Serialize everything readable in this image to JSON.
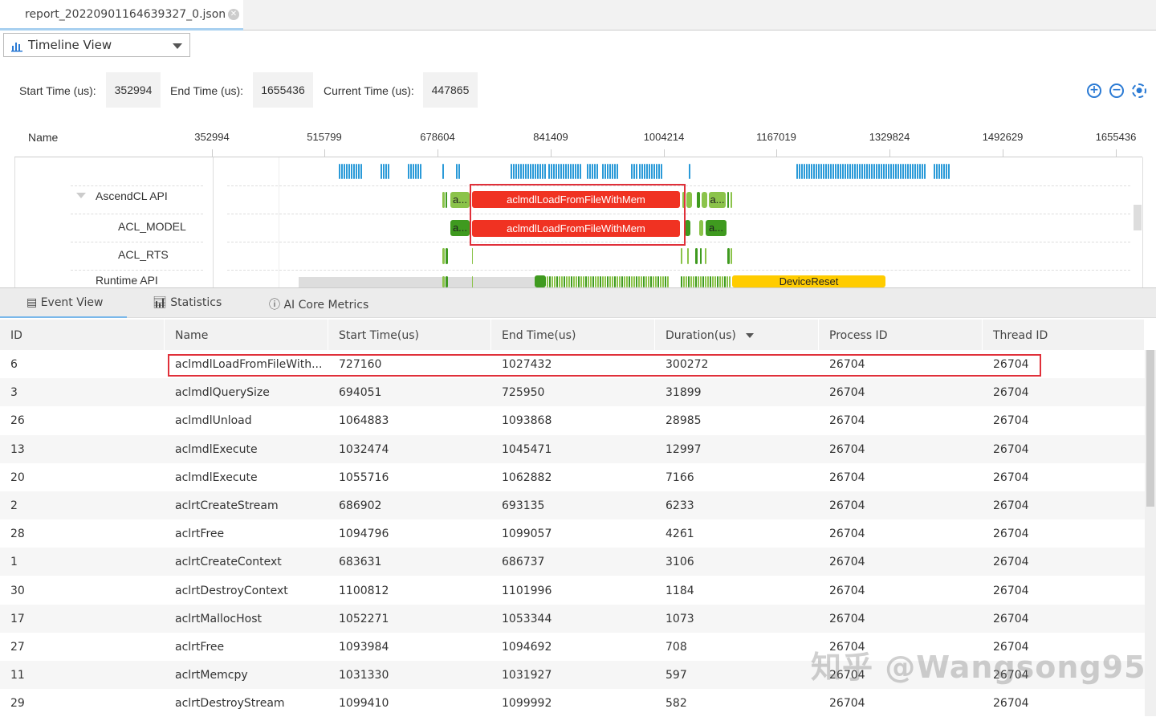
{
  "file_tab": {
    "title": "report_20220901164639327_0.json",
    "close_icon": "close-circle-icon"
  },
  "view_selector": {
    "value": "Timeline View",
    "icon": "bar-chart-icon"
  },
  "time_controls": {
    "start_label": "Start Time (us):",
    "start_value": "352994",
    "end_label": "End Time (us):",
    "end_value": "1655436",
    "current_label": "Current Time (us):",
    "current_value": "447865"
  },
  "zoom_controls": [
    "zoom-in-icon",
    "zoom-out-icon",
    "reset-zoom-icon"
  ],
  "timeline": {
    "name_header": "Name",
    "ticks": [
      "352994",
      "515799",
      "678604",
      "841409",
      "1004214",
      "1167019",
      "1329824",
      "1492629",
      "1655436"
    ],
    "tracks": [
      {
        "label": "AscendCL API"
      },
      {
        "label": "ACL_MODEL"
      },
      {
        "label": "ACL_RTS"
      },
      {
        "label": "Runtime API"
      }
    ],
    "event_labels": {
      "short": "a...",
      "highlight": "aclmdlLoadFromFileWithMem",
      "device_reset": "DeviceReset"
    },
    "colors": {
      "blue": "#2a9ad8",
      "light_green": "#8bc34a",
      "dark_green": "#3f9a1f",
      "red": "#f03222",
      "yellow": "#ffcc00",
      "highlight_border": "#e0303a"
    }
  },
  "bottom_tabs": [
    {
      "label": "Event View",
      "icon": "document-icon",
      "active": true
    },
    {
      "label": "Statistics",
      "icon": "bar-chart-icon"
    },
    {
      "label": "AI Core Metrics",
      "icon": "info-circle-icon"
    }
  ],
  "table": {
    "columns": [
      "ID",
      "Name",
      "Start Time(us)",
      "End Time(us)",
      "Duration(us)",
      "Process ID",
      "Thread ID"
    ],
    "sorted_column": "Duration(us)",
    "rows": [
      [
        "6",
        "aclmdlLoadFromFileWith...",
        "727160",
        "1027432",
        "300272",
        "26704",
        "26704"
      ],
      [
        "3",
        "aclmdlQuerySize",
        "694051",
        "725950",
        "31899",
        "26704",
        "26704"
      ],
      [
        "26",
        "aclmdlUnload",
        "1064883",
        "1093868",
        "28985",
        "26704",
        "26704"
      ],
      [
        "13",
        "aclmdlExecute",
        "1032474",
        "1045471",
        "12997",
        "26704",
        "26704"
      ],
      [
        "20",
        "aclmdlExecute",
        "1055716",
        "1062882",
        "7166",
        "26704",
        "26704"
      ],
      [
        "2",
        "aclrtCreateStream",
        "686902",
        "693135",
        "6233",
        "26704",
        "26704"
      ],
      [
        "28",
        "aclrtFree",
        "1094796",
        "1099057",
        "4261",
        "26704",
        "26704"
      ],
      [
        "1",
        "aclrtCreateContext",
        "683631",
        "686737",
        "3106",
        "26704",
        "26704"
      ],
      [
        "30",
        "aclrtDestroyContext",
        "1100812",
        "1101996",
        "1184",
        "26704",
        "26704"
      ],
      [
        "17",
        "aclrtMallocHost",
        "1052271",
        "1053344",
        "1073",
        "26704",
        "26704"
      ],
      [
        "27",
        "aclrtFree",
        "1093984",
        "1094692",
        "708",
        "26704",
        "26704"
      ],
      [
        "11",
        "aclrtMemcpy",
        "1031330",
        "1031927",
        "597",
        "26704",
        "26704"
      ],
      [
        "29",
        "aclrtDestroyStream",
        "1099410",
        "1099992",
        "582",
        "26704",
        "26704"
      ]
    ]
  },
  "watermark": "知乎 @Wangsong95"
}
